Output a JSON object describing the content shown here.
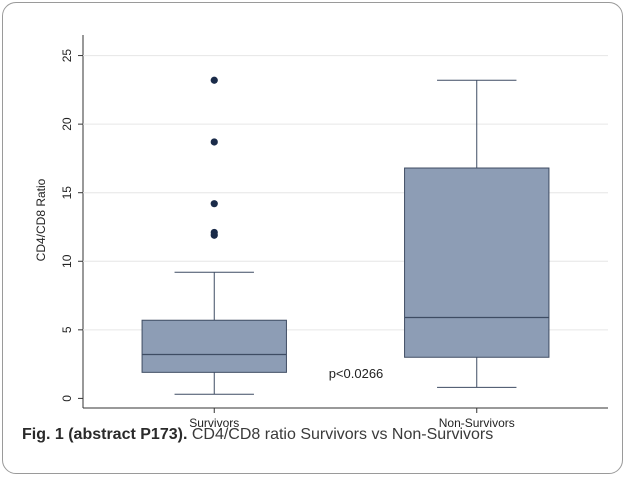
{
  "caption": {
    "label": "Fig. 1 (abstract P173).",
    "text": " CD4/CD8 ratio Survivors vs Non-Survivors"
  },
  "chart_data": {
    "type": "box",
    "ylabel": "CD4/CD8 Ratio",
    "xlabel": "",
    "title": "",
    "ylim": [
      -0.7,
      26.5
    ],
    "yticks": [
      0,
      5,
      10,
      15,
      20,
      25
    ],
    "grid": true,
    "categories": [
      "Survivors",
      "Non-Survivors"
    ],
    "boxes": [
      {
        "name": "Survivors",
        "whisker_low": 0.3,
        "q1": 1.9,
        "median": 3.2,
        "q3": 5.7,
        "whisker_high": 9.2,
        "outliers": [
          11.9,
          12.1,
          14.2,
          18.7,
          23.2
        ]
      },
      {
        "name": "Non-Survivors",
        "whisker_low": 0.8,
        "q1": 3.0,
        "median": 5.9,
        "q3": 16.8,
        "whisker_high": 23.2,
        "outliers": []
      }
    ],
    "annotation": "p<0.0266",
    "colors": {
      "box_fill": "#8d9db5",
      "box_stroke": "#3e4c63",
      "outlier": "#1a2b49",
      "grid": "#e6e6e6"
    }
  }
}
